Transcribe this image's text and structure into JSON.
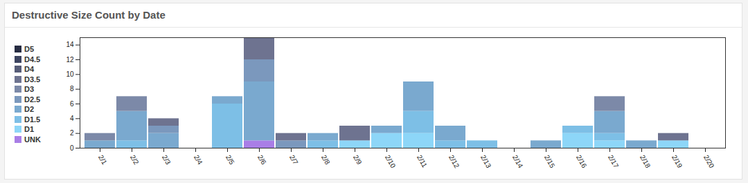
{
  "chart_data": {
    "type": "bar",
    "title": "Destructive Size Count by Date",
    "categories": [
      "2/1",
      "2/2",
      "2/3",
      "2/4",
      "2/5",
      "2/6",
      "2/7",
      "2/8",
      "2/9",
      "2/10",
      "2/11",
      "2/12",
      "2/13",
      "2/14",
      "2/15",
      "2/16",
      "2/17",
      "2/18",
      "2/19",
      "2/20"
    ],
    "series": [
      {
        "name": "UNK",
        "color": "#a97ee6",
        "values": [
          0,
          0,
          0,
          0,
          0,
          1,
          0,
          0,
          0,
          0,
          0,
          0,
          0,
          0,
          0,
          0,
          0,
          0,
          0,
          0
        ]
      },
      {
        "name": "D1",
        "color": "#8dd6f8",
        "values": [
          0,
          0,
          0,
          0,
          0,
          0,
          0,
          0,
          1,
          2,
          2,
          0,
          0,
          0,
          0,
          2,
          1,
          0,
          1,
          0
        ]
      },
      {
        "name": "D1.5",
        "color": "#7dbfe6",
        "values": [
          0,
          1,
          0,
          0,
          6,
          0,
          0,
          1,
          0,
          0,
          3,
          1,
          1,
          0,
          0,
          1,
          1,
          0,
          0,
          0
        ]
      },
      {
        "name": "D2",
        "color": "#7aa9cf",
        "values": [
          1,
          4,
          2,
          0,
          1,
          8,
          0,
          1,
          0,
          1,
          4,
          2,
          0,
          0,
          1,
          0,
          3,
          1,
          0,
          0
        ]
      },
      {
        "name": "D2.5",
        "color": "#7b98bd",
        "values": [
          0,
          0,
          1,
          0,
          0,
          3,
          1,
          0,
          0,
          0,
          0,
          0,
          0,
          0,
          0,
          0,
          0,
          0,
          0,
          0
        ]
      },
      {
        "name": "D3",
        "color": "#7c89a8",
        "values": [
          1,
          2,
          0,
          0,
          0,
          0,
          0,
          0,
          0,
          0,
          0,
          0,
          0,
          0,
          0,
          0,
          2,
          0,
          0,
          0
        ]
      },
      {
        "name": "D3.5",
        "color": "#6e7390",
        "values": [
          0,
          0,
          1,
          0,
          0,
          3,
          1,
          0,
          2,
          0,
          0,
          0,
          0,
          0,
          0,
          0,
          0,
          0,
          1,
          0
        ]
      },
      {
        "name": "D4",
        "color": "#575d78",
        "values": [
          0,
          0,
          0,
          0,
          0,
          0,
          0,
          0,
          0,
          0,
          0,
          0,
          0,
          0,
          0,
          0,
          0,
          0,
          0,
          0
        ]
      },
      {
        "name": "D4.5",
        "color": "#3d4460",
        "values": [
          0,
          0,
          0,
          0,
          0,
          0,
          0,
          0,
          0,
          0,
          0,
          0,
          0,
          0,
          0,
          0,
          0,
          0,
          0,
          0
        ]
      },
      {
        "name": "D5",
        "color": "#262c42",
        "values": [
          0,
          0,
          0,
          0,
          0,
          0,
          0,
          0,
          0,
          0,
          0,
          0,
          0,
          0,
          0,
          0,
          0,
          0,
          0,
          0
        ]
      }
    ],
    "ylim": [
      0,
      15
    ],
    "yticks": [
      0,
      2,
      4,
      6,
      8,
      10,
      12,
      14
    ],
    "stacked": true,
    "legend": "left"
  }
}
